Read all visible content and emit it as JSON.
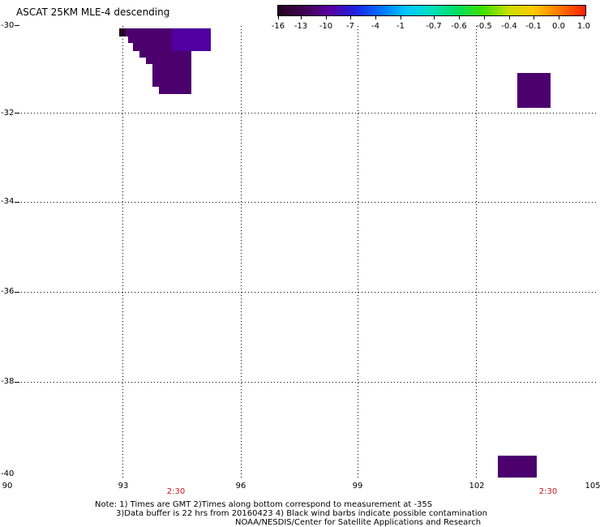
{
  "title": "ASCAT 25KM MLE-4 descending",
  "colorbar": {
    "labels": [
      "-16",
      "-13",
      "-10",
      "-7",
      "-4",
      "-1",
      "-0.7",
      "-0.6",
      "-0.5",
      "-0.4",
      "-0.1",
      "0.0",
      "1.0"
    ],
    "colors": [
      "#250020",
      "#400050",
      "#5a00a0",
      "#2020e0",
      "#0070ff",
      "#00c8ff",
      "#00e0c0",
      "#00e060",
      "#40e000",
      "#c8e000",
      "#ffc800",
      "#ff7800",
      "#ff1e00"
    ]
  },
  "map": {
    "lat_labels": [
      "-30",
      "-32",
      "-34",
      "-36",
      "-38",
      "-40"
    ],
    "lon_labels": [
      "90",
      "93",
      "96",
      "99",
      "102",
      "105"
    ],
    "time_labels": [
      "2:30",
      "2:30"
    ],
    "time_color": "#c01818",
    "swath_color": "#4b006e",
    "swath_color_alt": "#5000a0"
  },
  "notes": {
    "line1": "Note: 1) Times are GMT 2)Times along bottom correspond to measurement at -35S",
    "line2": "3)Data buffer is 22 hrs from 20160423 4) Black wind barbs indicate possible contamination",
    "line3": "NOAA/NESDIS/Center for Satellite Applications and Research"
  }
}
